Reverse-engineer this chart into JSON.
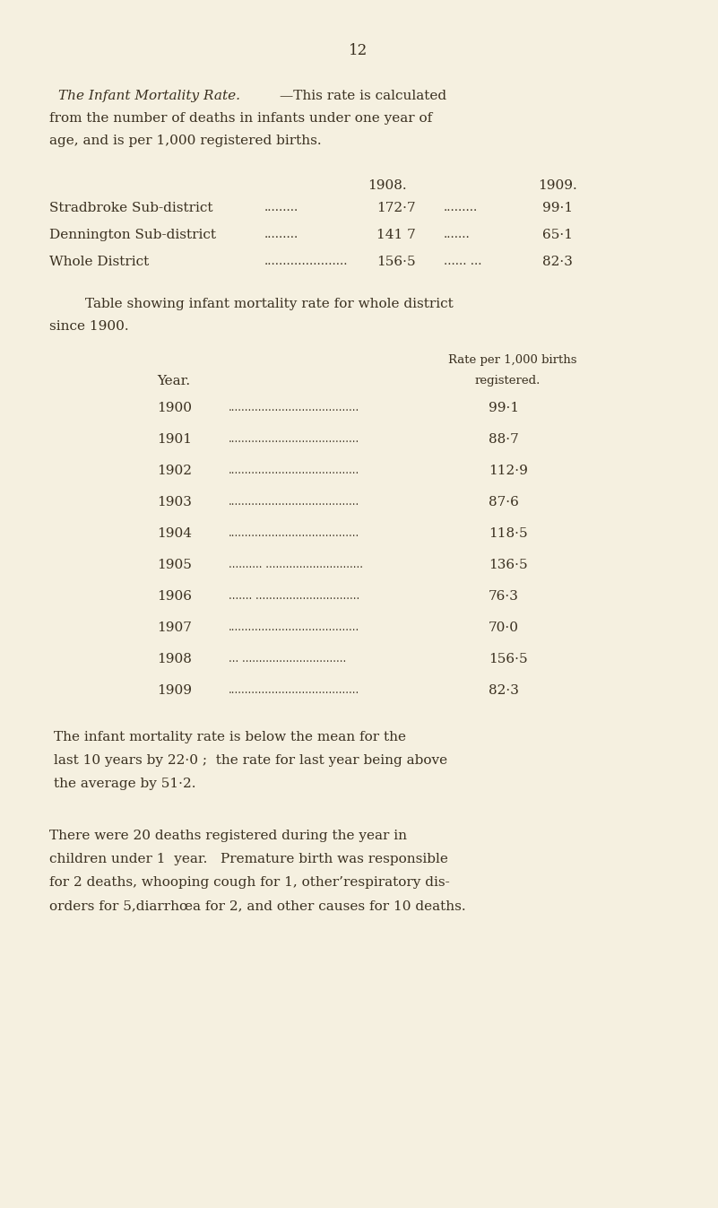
{
  "bg_color": "#f5f0e0",
  "text_color": "#3a3020",
  "page_number": "12",
  "title_italic": "The Infant Mortality Rate.",
  "title_cont": "—This rate is calculated",
  "title_line2": "from the number of deaths in infants under one year of",
  "title_line3": "age, and is per 1,000 registered births.",
  "col1908": "1908.",
  "col1909": "1909.",
  "table1_rows": [
    {
      "label": "Stradbroke Sub-district",
      "dots1": ".........",
      "val1": "172·7",
      "dots2": ".........",
      "val2": "99·1"
    },
    {
      "label": "Dennington Sub-district",
      "dots1": ".........",
      "val1": "141 7",
      "dots2": ".......",
      "val2": "65·1"
    },
    {
      "label": "Whole District",
      "dots1": "......................",
      "val1": "156·5",
      "dots2": "...... ...",
      "val2": "82·3"
    }
  ],
  "t2_title_line1": "Table showing infant mortality rate for whole district",
  "t2_title_line2": "since 1900.",
  "t2_header1": "Rate per 1,000 births",
  "t2_col_year": "Year.",
  "t2_header2": "registered.",
  "table2_rows": [
    {
      "year": "1900",
      "dots": ".......................................",
      "rate": "99·1"
    },
    {
      "year": "1901",
      "dots": ".......................................",
      "rate": "88·7"
    },
    {
      "year": "1902",
      "dots": ".......................................",
      "rate": "112·9"
    },
    {
      "year": "1903",
      "dots": ".......................................",
      "rate": "87·6"
    },
    {
      "year": "1904",
      "dots": ".......................................",
      "rate": "118·5"
    },
    {
      "year": "1905",
      "dots": ".......... .............................",
      "rate": "136·5"
    },
    {
      "year": "1906",
      "dots": "....... ...............................",
      "rate": "76·3"
    },
    {
      "year": "1907",
      "dots": ".......................................",
      "rate": "70·0"
    },
    {
      "year": "1908",
      "dots": "... ...............................",
      "rate": "156·5"
    },
    {
      "year": "1909",
      "dots": ".......................................",
      "rate": "82·3"
    }
  ],
  "p1_lines": [
    "The infant mortality rate is below the mean for the",
    "last 10 years by 22·0 ;  the rate for last year being above",
    "the average by 51·2."
  ],
  "p2_lines": [
    "There were 20 deaths registered during the year in",
    "children under 1  year.   Premature birth was responsible",
    "for 2 deaths, whooping cough for 1, other’respiratory dis-",
    "orders for 5,diarrhœa for 2, and other causes for 10 deaths."
  ],
  "fs_body": 11.0,
  "fs_small": 9.5,
  "fs_page": 12.0
}
